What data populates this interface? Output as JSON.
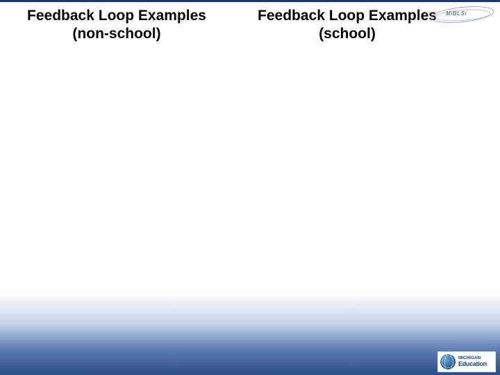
{
  "slide": {
    "background_gradient": [
      "#ffffff",
      "#ffffff",
      "#c9d6ea",
      "#5f7fb5",
      "#2a4b85"
    ],
    "top_border_color": "#1e3a6e"
  },
  "headings": {
    "left": {
      "line1": "Feedback Loop Examples",
      "line2": "(non-school)",
      "font_size_pt": 16,
      "font_weight": "bold",
      "color": "#000000"
    },
    "right": {
      "line1": "Feedback Loop Examples",
      "line2": "(school)",
      "font_size_pt": 16,
      "font_weight": "bold",
      "color": "#000000"
    }
  },
  "logos": {
    "top_right": {
      "text": "MiBLSi",
      "stroke_color": "#98a7c0",
      "text_color": "#6a7c9d"
    },
    "bottom_right": {
      "line1_prefix": "MICH",
      "line1_accent": "I",
      "line1_suffix": "GAN",
      "line2": "Education",
      "primary_color": "#0b4a7a",
      "accent_color": "#b02828",
      "background": "#ffffff"
    }
  }
}
